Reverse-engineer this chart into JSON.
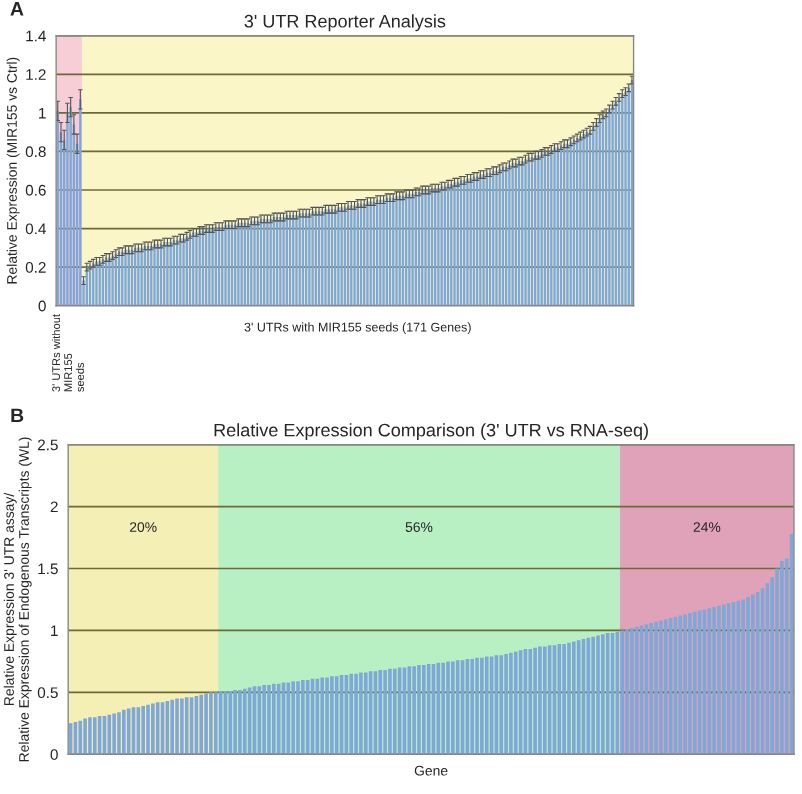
{
  "chart_data": [
    {
      "type": "bar",
      "title": "3' UTR Reporter Analysis",
      "ylabel": "Relative Expression (MIR155 vs Ctrl)",
      "xlabel": "3' UTRs with MIR155 seeds (171 Genes)",
      "annotations": [
        "A",
        "3' UTRs without\nMIR155\nseeds"
      ],
      "categories": [
        null,
        null,
        null,
        null,
        null,
        null,
        null,
        null,
        null,
        null,
        null,
        null,
        null,
        null,
        null,
        null,
        null,
        null,
        null,
        null,
        null,
        null,
        null,
        null,
        null,
        null,
        null,
        null,
        null,
        null,
        null,
        null,
        null,
        null,
        null,
        null,
        null,
        null,
        null,
        null,
        null,
        null,
        null,
        null,
        null,
        null,
        null,
        null,
        null,
        null,
        null,
        null,
        null,
        null,
        null,
        null,
        null,
        null,
        null,
        null,
        null,
        null,
        null,
        null,
        null,
        null,
        null,
        null,
        null,
        null,
        null,
        null,
        null,
        null,
        null,
        null,
        null,
        null,
        null,
        null,
        null,
        null,
        null,
        null,
        null,
        null,
        null,
        null,
        null,
        null,
        null,
        null,
        null,
        null,
        null,
        null,
        null,
        null,
        null,
        null,
        null,
        null,
        null,
        null,
        null,
        null,
        null,
        null,
        null,
        null,
        null,
        null,
        null,
        null,
        null,
        null,
        null,
        null,
        null,
        null,
        null,
        null,
        null,
        null,
        null,
        null,
        null,
        null,
        null,
        null,
        null,
        null,
        null,
        null,
        null,
        null,
        null,
        null,
        null,
        null,
        null,
        null,
        null,
        null,
        null,
        null,
        null,
        null,
        null,
        null,
        null,
        null,
        null,
        null,
        null,
        null,
        null,
        null,
        null,
        null,
        null,
        null,
        null,
        null,
        null,
        null,
        null,
        null,
        null,
        null,
        null,
        null,
        null,
        null,
        null,
        null,
        null,
        null,
        null
      ],
      "series": [
        {
          "color": "#7fa8d8",
          "values": [
            1.01,
            0.9,
            0.86,
            1.0,
            1.03,
            0.94,
            0.84,
            1.07,
            0.13,
            0.2,
            0.21,
            0.22,
            0.23,
            0.23,
            0.24,
            0.25,
            0.25,
            0.26,
            0.27,
            0.28,
            0.28,
            0.29,
            0.29,
            0.29,
            0.3,
            0.3,
            0.3,
            0.31,
            0.31,
            0.31,
            0.32,
            0.32,
            0.32,
            0.33,
            0.33,
            0.33,
            0.34,
            0.34,
            0.35,
            0.35,
            0.36,
            0.37,
            0.38,
            0.38,
            0.39,
            0.39,
            0.4,
            0.4,
            0.4,
            0.41,
            0.41,
            0.41,
            0.42,
            0.42,
            0.42,
            0.42,
            0.43,
            0.43,
            0.43,
            0.43,
            0.44,
            0.44,
            0.44,
            0.45,
            0.45,
            0.45,
            0.45,
            0.46,
            0.46,
            0.46,
            0.46,
            0.47,
            0.47,
            0.47,
            0.47,
            0.48,
            0.48,
            0.48,
            0.48,
            0.49,
            0.49,
            0.49,
            0.49,
            0.5,
            0.5,
            0.5,
            0.5,
            0.51,
            0.51,
            0.51,
            0.52,
            0.52,
            0.52,
            0.53,
            0.53,
            0.53,
            0.54,
            0.54,
            0.54,
            0.55,
            0.55,
            0.55,
            0.56,
            0.56,
            0.56,
            0.57,
            0.57,
            0.57,
            0.58,
            0.58,
            0.58,
            0.59,
            0.59,
            0.6,
            0.6,
            0.6,
            0.61,
            0.61,
            0.61,
            0.62,
            0.62,
            0.63,
            0.63,
            0.64,
            0.64,
            0.65,
            0.65,
            0.66,
            0.66,
            0.67,
            0.67,
            0.68,
            0.68,
            0.69,
            0.69,
            0.7,
            0.7,
            0.71,
            0.72,
            0.72,
            0.73,
            0.74,
            0.74,
            0.75,
            0.75,
            0.76,
            0.77,
            0.77,
            0.78,
            0.78,
            0.79,
            0.8,
            0.8,
            0.81,
            0.82,
            0.82,
            0.83,
            0.84,
            0.84,
            0.85,
            0.86,
            0.87,
            0.88,
            0.89,
            0.9,
            0.91,
            0.93,
            0.95,
            0.97,
            0.99,
            1.0,
            1.02,
            1.04,
            1.06,
            1.08,
            1.1,
            1.11,
            1.13,
            1.17
          ],
          "errors": [
            0.05,
            0.05,
            0.05,
            0.05,
            0.05,
            0.05,
            0.05,
            0.05,
            0.02,
            0.02,
            0.02,
            0.02,
            0.02,
            0.02,
            0.02,
            0.02,
            0.02,
            0.02,
            0.02,
            0.02,
            0.02,
            0.02,
            0.02,
            0.02,
            0.02,
            0.02,
            0.02,
            0.02,
            0.02,
            0.02,
            0.02,
            0.02,
            0.02,
            0.02,
            0.02,
            0.02,
            0.02,
            0.02,
            0.02,
            0.02,
            0.02,
            0.02,
            0.02,
            0.02,
            0.02,
            0.02,
            0.02,
            0.02,
            0.02,
            0.02,
            0.02,
            0.02,
            0.02,
            0.02,
            0.02,
            0.02,
            0.02,
            0.02,
            0.02,
            0.02,
            0.02,
            0.02,
            0.02,
            0.02,
            0.02,
            0.02,
            0.02,
            0.02,
            0.02,
            0.02,
            0.02,
            0.02,
            0.02,
            0.02,
            0.02,
            0.02,
            0.02,
            0.02,
            0.02,
            0.02,
            0.02,
            0.02,
            0.02,
            0.02,
            0.02,
            0.02,
            0.02,
            0.02,
            0.02,
            0.02,
            0.02,
            0.02,
            0.02,
            0.02,
            0.02,
            0.02,
            0.02,
            0.02,
            0.02,
            0.02,
            0.02,
            0.02,
            0.02,
            0.02,
            0.02,
            0.02,
            0.02,
            0.02,
            0.02,
            0.02,
            0.02,
            0.02,
            0.02,
            0.02,
            0.02,
            0.02,
            0.02,
            0.02,
            0.02,
            0.02,
            0.02,
            0.02,
            0.02,
            0.02,
            0.02,
            0.02,
            0.02,
            0.02,
            0.02,
            0.02,
            0.02,
            0.02,
            0.02,
            0.02,
            0.02,
            0.02,
            0.02,
            0.02,
            0.02,
            0.02,
            0.02,
            0.02,
            0.02,
            0.02,
            0.02,
            0.02,
            0.02,
            0.02,
            0.02,
            0.02,
            0.02,
            0.02,
            0.02,
            0.02,
            0.02,
            0.02,
            0.02,
            0.02,
            0.02,
            0.02,
            0.02,
            0.02,
            0.02,
            0.02,
            0.02,
            0.02,
            0.02,
            0.02,
            0.02,
            0.02,
            0.02,
            0.02,
            0.02,
            0.02,
            0.02,
            0.02,
            0.02,
            0.02,
            0.02
          ]
        }
      ],
      "ylim": [
        0,
        1.4
      ],
      "yticks": [
        0,
        0.2,
        0.4,
        0.6,
        0.8,
        1,
        1.2,
        1.4
      ],
      "grid": "y",
      "tick_labels": "y"
    },
    {
      "type": "bar",
      "title": "Relative Expression Comparison (3' UTR vs RNA-seq)",
      "ylabel": "Relative Expression 3' UTR assay/\nRelative Expression of Endogenous Transcripts (WL)",
      "xlabel": "Gene",
      "annotations": [
        "B",
        "20%",
        "56%",
        "24%"
      ],
      "categories": [
        null,
        null,
        null,
        null,
        null,
        null,
        null,
        null,
        null,
        null,
        null,
        null,
        null,
        null,
        null,
        null,
        null,
        null,
        null,
        null,
        null,
        null,
        null,
        null,
        null,
        null,
        null,
        null,
        null,
        null,
        null,
        null,
        null,
        null,
        null,
        null,
        null,
        null,
        null,
        null,
        null,
        null,
        null,
        null,
        null,
        null,
        null,
        null,
        null,
        null,
        null,
        null,
        null,
        null,
        null,
        null,
        null,
        null,
        null,
        null,
        null,
        null,
        null,
        null,
        null,
        null,
        null,
        null,
        null,
        null,
        null,
        null,
        null,
        null,
        null,
        null,
        null,
        null,
        null,
        null,
        null,
        null,
        null,
        null,
        null,
        null,
        null,
        null,
        null,
        null,
        null,
        null,
        null,
        null,
        null,
        null,
        null,
        null,
        null,
        null,
        null,
        null,
        null,
        null,
        null,
        null,
        null,
        null,
        null,
        null,
        null,
        null,
        null,
        null,
        null,
        null,
        null,
        null,
        null,
        null,
        null,
        null,
        null,
        null,
        null,
        null,
        null,
        null,
        null,
        null,
        null,
        null,
        null,
        null,
        null,
        null,
        null,
        null,
        null,
        null,
        null,
        null,
        null,
        null,
        null,
        null,
        null,
        null,
        null,
        null
      ],
      "series": [
        {
          "color": "#7fa8d8",
          "values": [
            0.25,
            0.26,
            0.27,
            0.29,
            0.3,
            0.3,
            0.31,
            0.31,
            0.32,
            0.33,
            0.34,
            0.36,
            0.37,
            0.38,
            0.38,
            0.39,
            0.4,
            0.41,
            0.42,
            0.42,
            0.43,
            0.44,
            0.45,
            0.45,
            0.46,
            0.46,
            0.47,
            0.48,
            0.49,
            0.5,
            0.5,
            0.51,
            0.51,
            0.51,
            0.52,
            0.52,
            0.53,
            0.54,
            0.55,
            0.55,
            0.56,
            0.56,
            0.57,
            0.57,
            0.58,
            0.58,
            0.59,
            0.59,
            0.6,
            0.6,
            0.61,
            0.61,
            0.62,
            0.62,
            0.63,
            0.63,
            0.64,
            0.64,
            0.65,
            0.65,
            0.66,
            0.66,
            0.67,
            0.67,
            0.68,
            0.68,
            0.69,
            0.69,
            0.7,
            0.7,
            0.71,
            0.71,
            0.72,
            0.72,
            0.73,
            0.73,
            0.74,
            0.74,
            0.75,
            0.75,
            0.76,
            0.76,
            0.77,
            0.77,
            0.78,
            0.78,
            0.79,
            0.79,
            0.8,
            0.8,
            0.81,
            0.82,
            0.83,
            0.84,
            0.85,
            0.85,
            0.86,
            0.87,
            0.87,
            0.88,
            0.88,
            0.89,
            0.89,
            0.9,
            0.91,
            0.92,
            0.93,
            0.94,
            0.95,
            0.96,
            0.97,
            0.98,
            0.98,
            0.99,
            1.0,
            1.01,
            1.02,
            1.03,
            1.04,
            1.05,
            1.06,
            1.07,
            1.08,
            1.09,
            1.1,
            1.11,
            1.12,
            1.13,
            1.14,
            1.15,
            1.16,
            1.17,
            1.18,
            1.19,
            1.2,
            1.21,
            1.22,
            1.23,
            1.24,
            1.25,
            1.27,
            1.29,
            1.31,
            1.34,
            1.38,
            1.43,
            1.5,
            1.56,
            1.58,
            1.78
          ]
        }
      ],
      "ylim": [
        0,
        2.5
      ],
      "yticks": [
        0,
        0.5,
        1,
        1.5,
        2,
        2.5
      ],
      "grid": "y",
      "tick_labels": "y"
    }
  ]
}
